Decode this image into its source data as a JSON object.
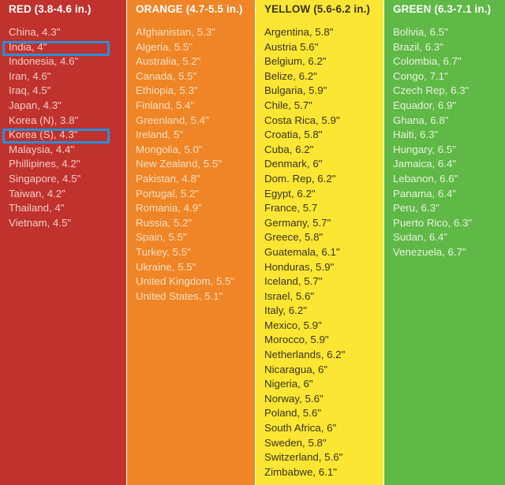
{
  "colors": {
    "red": "#c0322d",
    "orange": "#ef8526",
    "yellow": "#fbe633",
    "green": "#60b847",
    "red_text": "#f4ccc8",
    "orange_text": "#fde0c4",
    "yellow_text": "#3a3320",
    "green_text": "#e6f4de",
    "highlight": "#2a8ed9"
  },
  "columns": [
    {
      "key": "red",
      "title": "RED (3.8-4.6 in.)",
      "items": [
        "China, 4.3\"",
        "India, 4\"",
        "Indonesia, 4.6\"",
        "Iran, 4.6\"",
        "Iraq, 4.5\"",
        "Japan, 4.3\"",
        "Korea (N), 3.8\"",
        "Korea (S), 4.3\"",
        "Malaysia, 4.4\"",
        "Phillipines, 4.2\"",
        "Singapore, 4.5\"",
        "Taiwan, 4.2\"",
        "Thailand, 4\"",
        "Vietnam, 4.5\""
      ],
      "highlighted": [
        "India, 4\"",
        "Korea (S), 4.3\""
      ]
    },
    {
      "key": "orange",
      "title": "ORANGE (4.7-5.5 in.)",
      "items": [
        "Afghanistan, 5.3\"",
        "Algeria, 5.5\"",
        "Australia, 5.2\"",
        "Canada, 5.5\"",
        "Ethiopia, 5.3\"",
        "Finland, 5.4\"",
        "Greenland, 5.4\"",
        "Ireland, 5\"",
        "Mongolia, 5.0\"",
        "New Zealand, 5.5\"",
        "Pakistan, 4.8\"",
        "Portugal, 5.2\"",
        "Romania, 4.9\"",
        "Russia, 5.2\"",
        "Spain, 5.5\"",
        "Turkey, 5.5\"",
        "Ukraine, 5.5\"",
        "United Kingdom, 5.5\"",
        "United States, 5.1\""
      ]
    },
    {
      "key": "yellow",
      "title": "YELLOW (5.6-6.2 in.)",
      "items": [
        "Argentina, 5.8\"",
        "Austria 5.6\"",
        "Belgium, 6.2\"",
        "Belize, 6.2\"",
        "Bulgaria, 5.9\"",
        "Chile, 5.7\"",
        "Costa Rica, 5.9\"",
        "Croatia, 5.8\"",
        "Cuba, 6.2\"",
        "Denmark, 6\"",
        "Dom. Rep, 6.2\"",
        "Egypt, 6.2\"",
        "France, 5.7",
        "Germany, 5.7\"",
        "Greece, 5.8\"",
        "Guatemala, 6.1\"",
        "Honduras, 5.9\"",
        "Iceland, 5.7\"",
        "Israel, 5.6\"",
        "Italy, 6.2\"",
        "Mexico, 5.9\"",
        "Morocco, 5.9\"",
        "Netherlands, 6.2\"",
        "Nicaragua, 6\"",
        "Nigeria, 6\"",
        "Norway, 5.6\"",
        "Poland, 5.6\"",
        "South Africa, 6\"",
        "Sweden, 5.8\"",
        "Switzerland, 5.6\"",
        "Zimbabwe, 6.1\""
      ]
    },
    {
      "key": "green",
      "title": "GREEN (6.3-7.1 in.)",
      "items": [
        "Bolivia, 6.5\"",
        "Brazil, 6.3\"",
        "Colombia, 6.7\"",
        "Congo, 7.1\"",
        "Czech Rep, 6.3\"",
        "Equador, 6.9\"",
        "Ghana, 6.8\"",
        "Haiti, 6.3\"",
        "Hungary, 6.5\"",
        "Jamaica, 6.4\"",
        "Lebanon, 6.6\"",
        "Panama, 6.4\"",
        "Peru, 6.3\"",
        "Puerto Rico, 6.3\"",
        "Sudan, 6.4\"",
        "Venezuela, 6.7\""
      ]
    }
  ]
}
